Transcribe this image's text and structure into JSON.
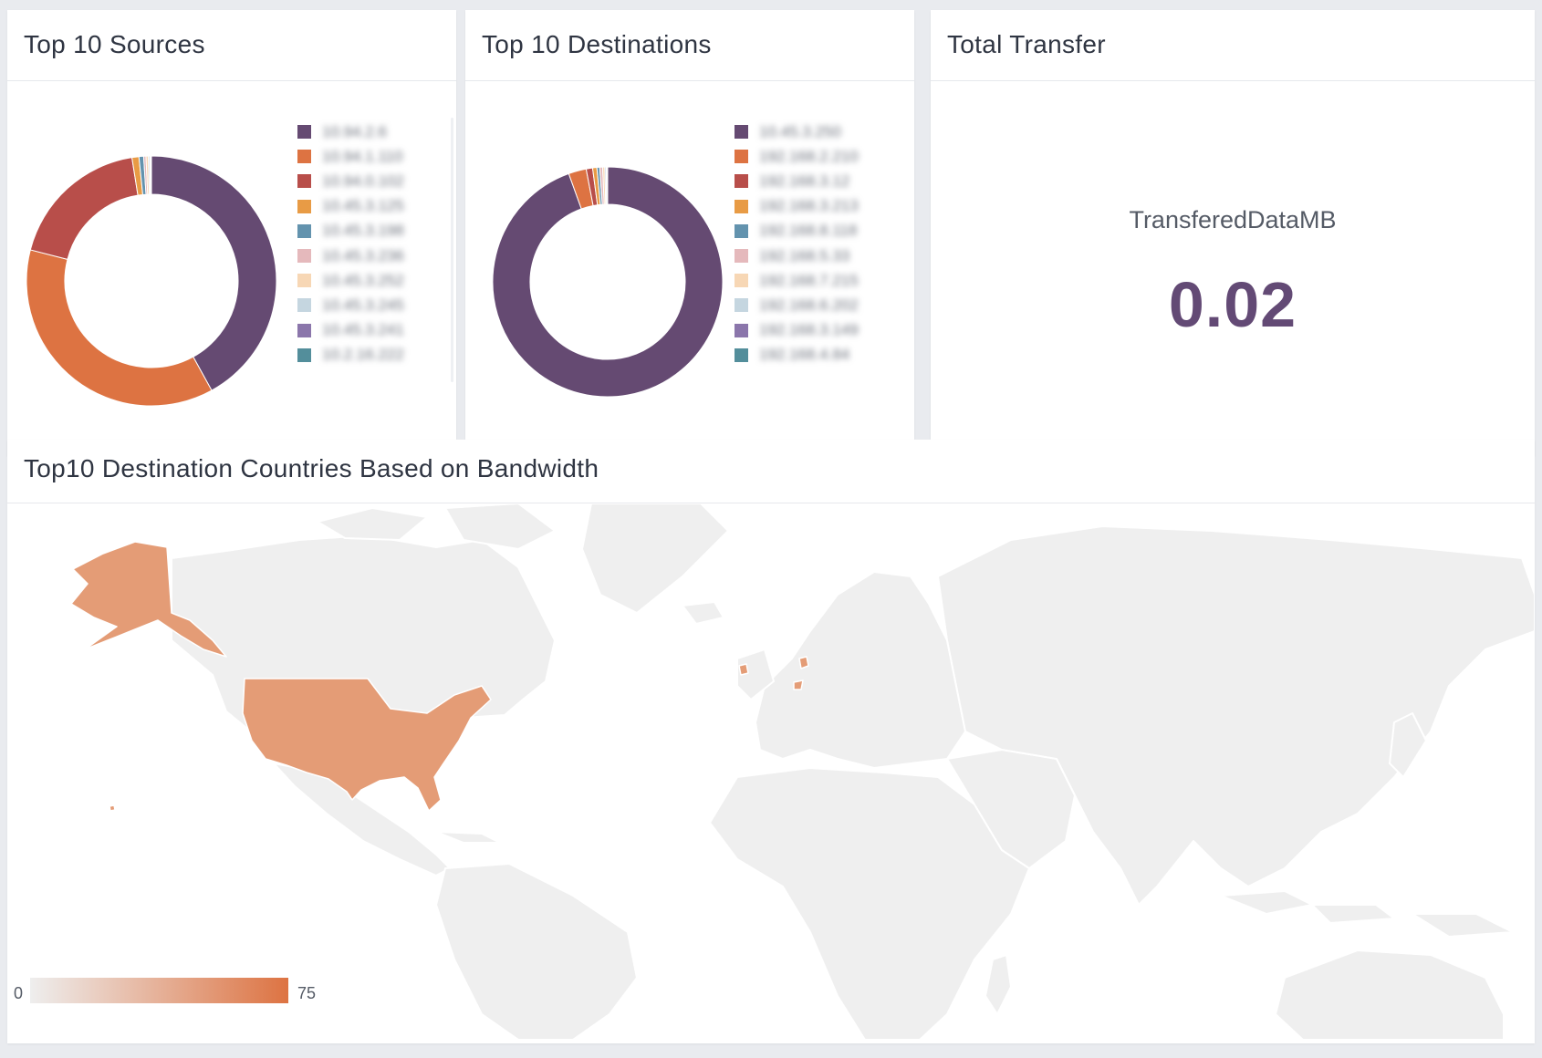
{
  "panels": {
    "sources": {
      "title": "Top 10 Sources",
      "legend": [
        {
          "label": "10.94.2.6",
          "color": "#654a72"
        },
        {
          "label": "10.94.1.110",
          "color": "#dd7342"
        },
        {
          "label": "10.94.0.102",
          "color": "#b84e4a"
        },
        {
          "label": "10.45.3.125",
          "color": "#e89b45"
        },
        {
          "label": "10.45.3.198",
          "color": "#6393ae"
        },
        {
          "label": "10.45.3.236",
          "color": "#e5b9bc"
        },
        {
          "label": "10.45.3.252",
          "color": "#f7d7b5"
        },
        {
          "label": "10.45.3.245",
          "color": "#c5d6e0"
        },
        {
          "label": "10.45.3.241",
          "color": "#8b76ab"
        },
        {
          "label": "10.2.16.222",
          "color": "#538e9b"
        }
      ],
      "values": [
        42,
        37,
        18.5,
        0.9,
        0.6,
        0.3,
        0.3,
        0.2,
        0.1,
        0.1
      ]
    },
    "destinations": {
      "title": "Top 10 Destinations",
      "legend": [
        {
          "label": "10.45.3.250",
          "color": "#654a72"
        },
        {
          "label": "192.168.2.210",
          "color": "#dd7342"
        },
        {
          "label": "192.168.3.12",
          "color": "#b84e4a"
        },
        {
          "label": "192.168.3.213",
          "color": "#e89b45"
        },
        {
          "label": "192.168.8.118",
          "color": "#6393ae"
        },
        {
          "label": "192.168.5.33",
          "color": "#e5b9bc"
        },
        {
          "label": "192.168.7.215",
          "color": "#f7d7b5"
        },
        {
          "label": "192.168.6.202",
          "color": "#c5d6e0"
        },
        {
          "label": "192.168.3.149",
          "color": "#8b76ab"
        },
        {
          "label": "192.168.4.84",
          "color": "#538e9b"
        }
      ],
      "values": [
        94.5,
        2.5,
        0.9,
        0.6,
        0.4,
        0.4,
        0.3,
        0.2,
        0.1,
        0.1
      ]
    },
    "total": {
      "title": "Total Transfer",
      "metric_label": "TransferedDataMB",
      "metric_value": "0.02"
    },
    "map": {
      "title": "Top10 Destination Countries Based on Bandwidth",
      "scale_min": "0",
      "scale_max": "75",
      "scale_color_low": "#eeeeee",
      "scale_color_high": "#dd7342",
      "highlight_color": "#e49c76",
      "base_color": "#efefef"
    }
  }
}
